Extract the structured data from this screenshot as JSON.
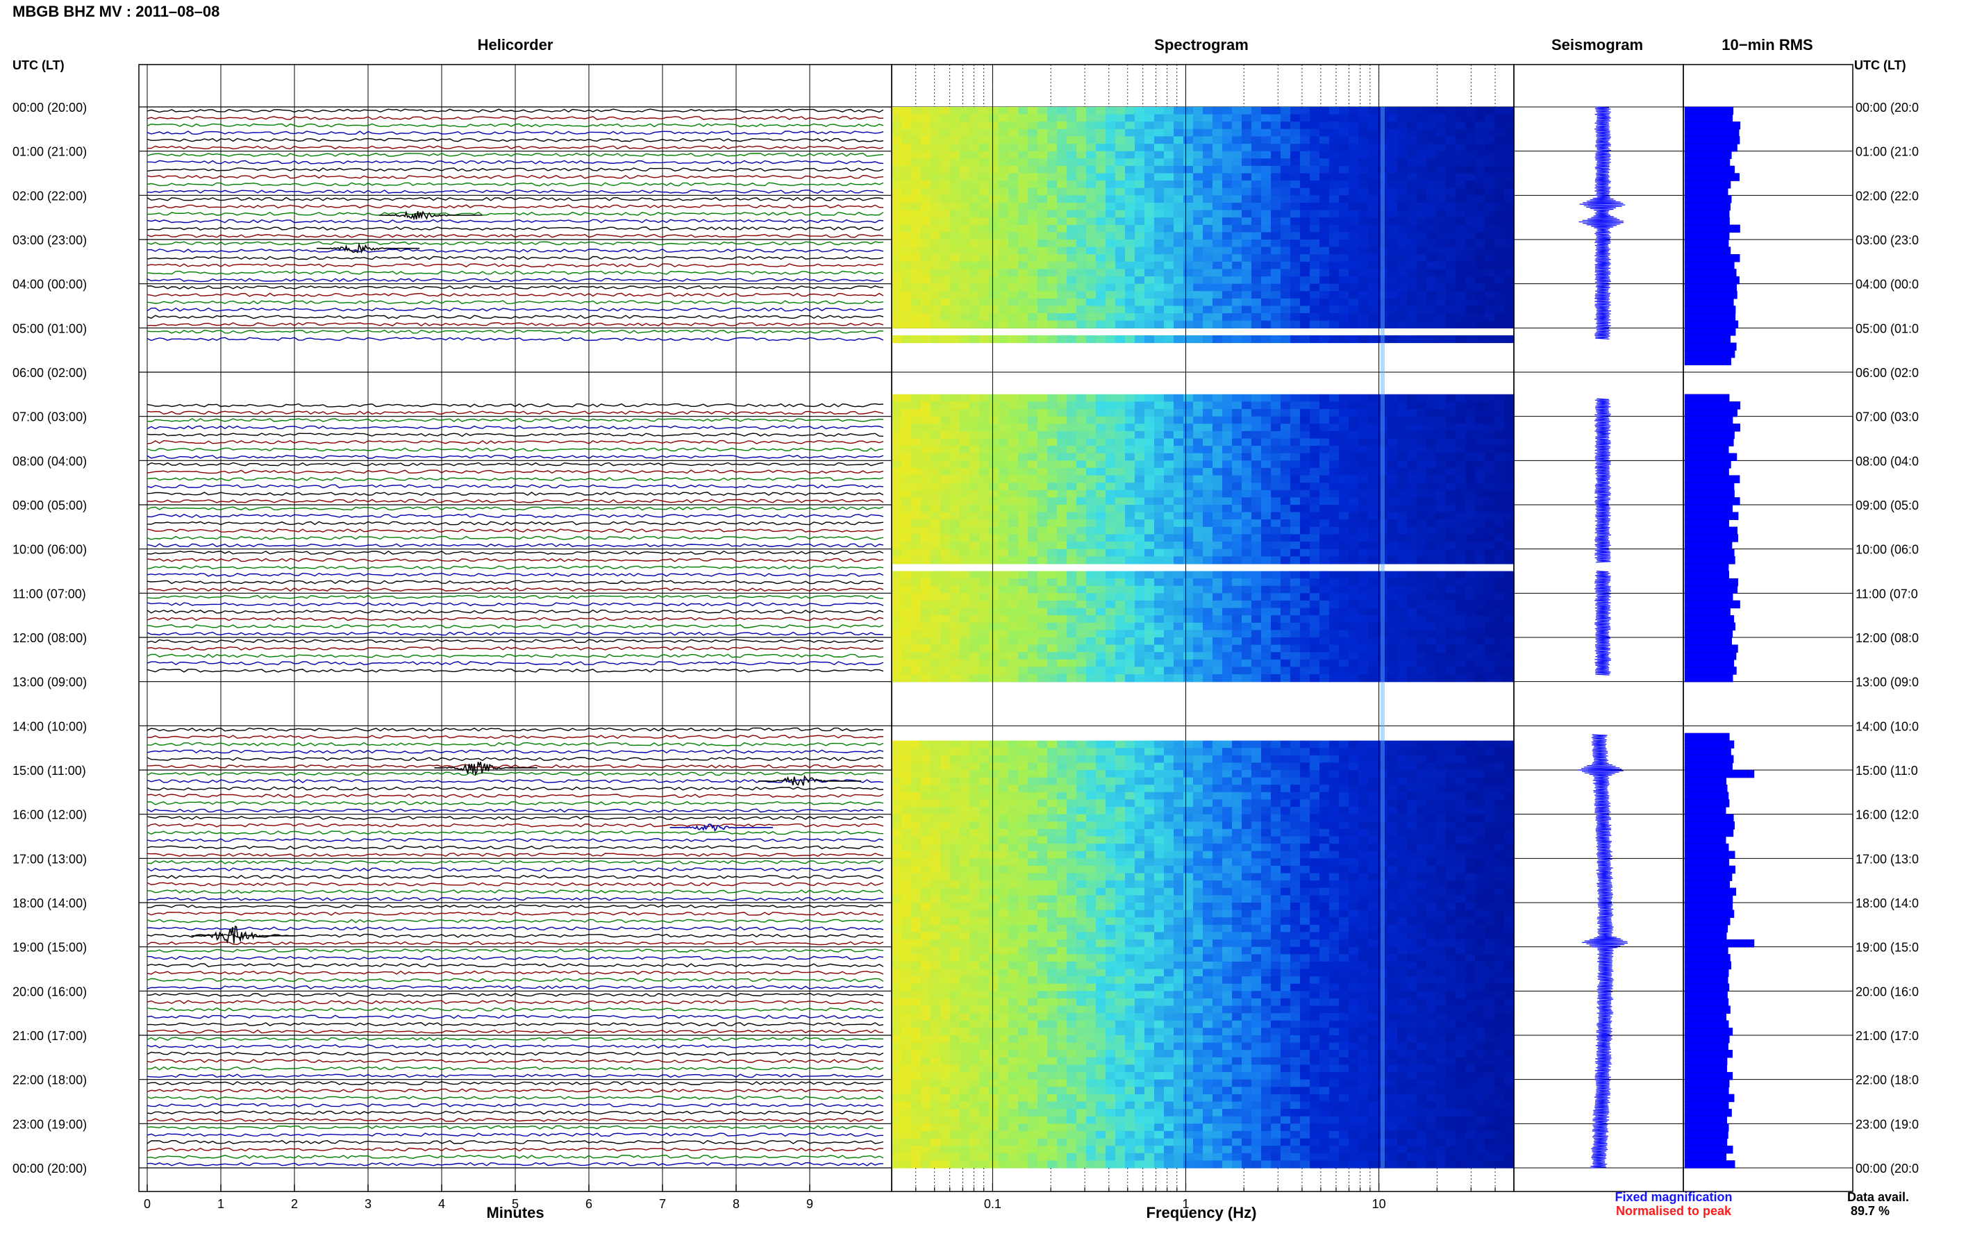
{
  "header": {
    "title": "MBGB BHZ MV : 2011–08–08",
    "utc_label_left": "UTC (LT)",
    "utc_label_right": "UTC (LT)"
  },
  "panels": {
    "helicorder": "Helicorder",
    "spectrogram": "Spectrogram",
    "seismogram": "Seismogram",
    "rms": "10−min RMS"
  },
  "footer": {
    "minutes_label": "Minutes",
    "frequency_label": "Frequency (Hz)",
    "fixed_mag": "Fixed magnification",
    "normalised": "Normalised to peak",
    "data_avail_label": "Data avail.",
    "data_avail_value": "89.7 %"
  },
  "colors": {
    "fixed": "#1515ff",
    "normalised": "#ff1a1a",
    "trace_colors": [
      "#000000",
      "#8b0000",
      "#008000",
      "#0000b0"
    ],
    "rms_bar": "#0000ff"
  },
  "chart_data": [
    {
      "type": "line",
      "name": "Helicorder",
      "xlabel": "Minutes",
      "x_ticks": [
        0,
        1,
        2,
        3,
        4,
        5,
        6,
        7,
        8,
        9
      ],
      "xlim": [
        0,
        10
      ],
      "row_labels": [
        "00:00 (20:00)",
        "01:00 (21:00)",
        "02:00 (22:00)",
        "03:00 (23:00)",
        "04:00 (00:00)",
        "05:00 (01:00)",
        "06:00 (02:00)",
        "07:00 (03:00)",
        "08:00 (04:00)",
        "09:00 (05:00)",
        "10:00 (06:00)",
        "11:00 (07:00)",
        "12:00 (08:00)",
        "13:00 (09:00)",
        "14:00 (10:00)",
        "15:00 (11:00)",
        "16:00 (12:00)",
        "17:00 (13:00)",
        "18:00 (14:00)",
        "19:00 (15:00)",
        "20:00 (16:00)",
        "21:00 (17:00)",
        "22:00 (18:00)",
        "23:00 (19:00)",
        "00:00 (20:00)"
      ],
      "row_labels_right": [
        "00:00 (20:0",
        "01:00 (21:0",
        "02:00 (22:0",
        "03:00 (23:0",
        "04:00 (00:0",
        "05:00 (01:0",
        "06:00 (02:0",
        "07:00 (03:0",
        "08:00 (04:0",
        "09:00 (05:0",
        "10:00 (06:0",
        "11:00 (07:0",
        "12:00 (08:0",
        "13:00 (09:0",
        "14:00 (10:0",
        "15:00 (11:0",
        "16:00 (12:0",
        "17:00 (13:0",
        "18:00 (14:0",
        "19:00 (15:0",
        "20:00 (16:0",
        "21:00 (17:0",
        "22:00 (18:0",
        "23:00 (19:0",
        "00:00 (20:0"
      ],
      "gaps_hours": [
        [
          5.25,
          6.6
        ],
        [
          12.8,
          14.0
        ]
      ]
    },
    {
      "type": "heatmap",
      "name": "Spectrogram",
      "xlabel": "Frequency (Hz)",
      "x_scale": "log",
      "xlim": [
        0.03,
        50
      ],
      "x_tick_labels": [
        "0.1",
        "1",
        "10"
      ],
      "x_ticks": [
        0.1,
        1,
        10
      ],
      "gaps_hours": [
        [
          5.0,
          5.1
        ],
        [
          5.25,
          6.5
        ],
        [
          10.3,
          10.5
        ],
        [
          12.9,
          14.2
        ]
      ]
    },
    {
      "type": "line",
      "name": "Seismogram",
      "events_hours": [
        2.2,
        2.6,
        15.0,
        18.9
      ]
    },
    {
      "type": "bar",
      "name": "10-min RMS",
      "gaps_hours": [
        [
          5.7,
          6.35
        ],
        [
          12.9,
          14.15
        ]
      ],
      "peak_hours": [
        15.0,
        18.9
      ]
    }
  ]
}
